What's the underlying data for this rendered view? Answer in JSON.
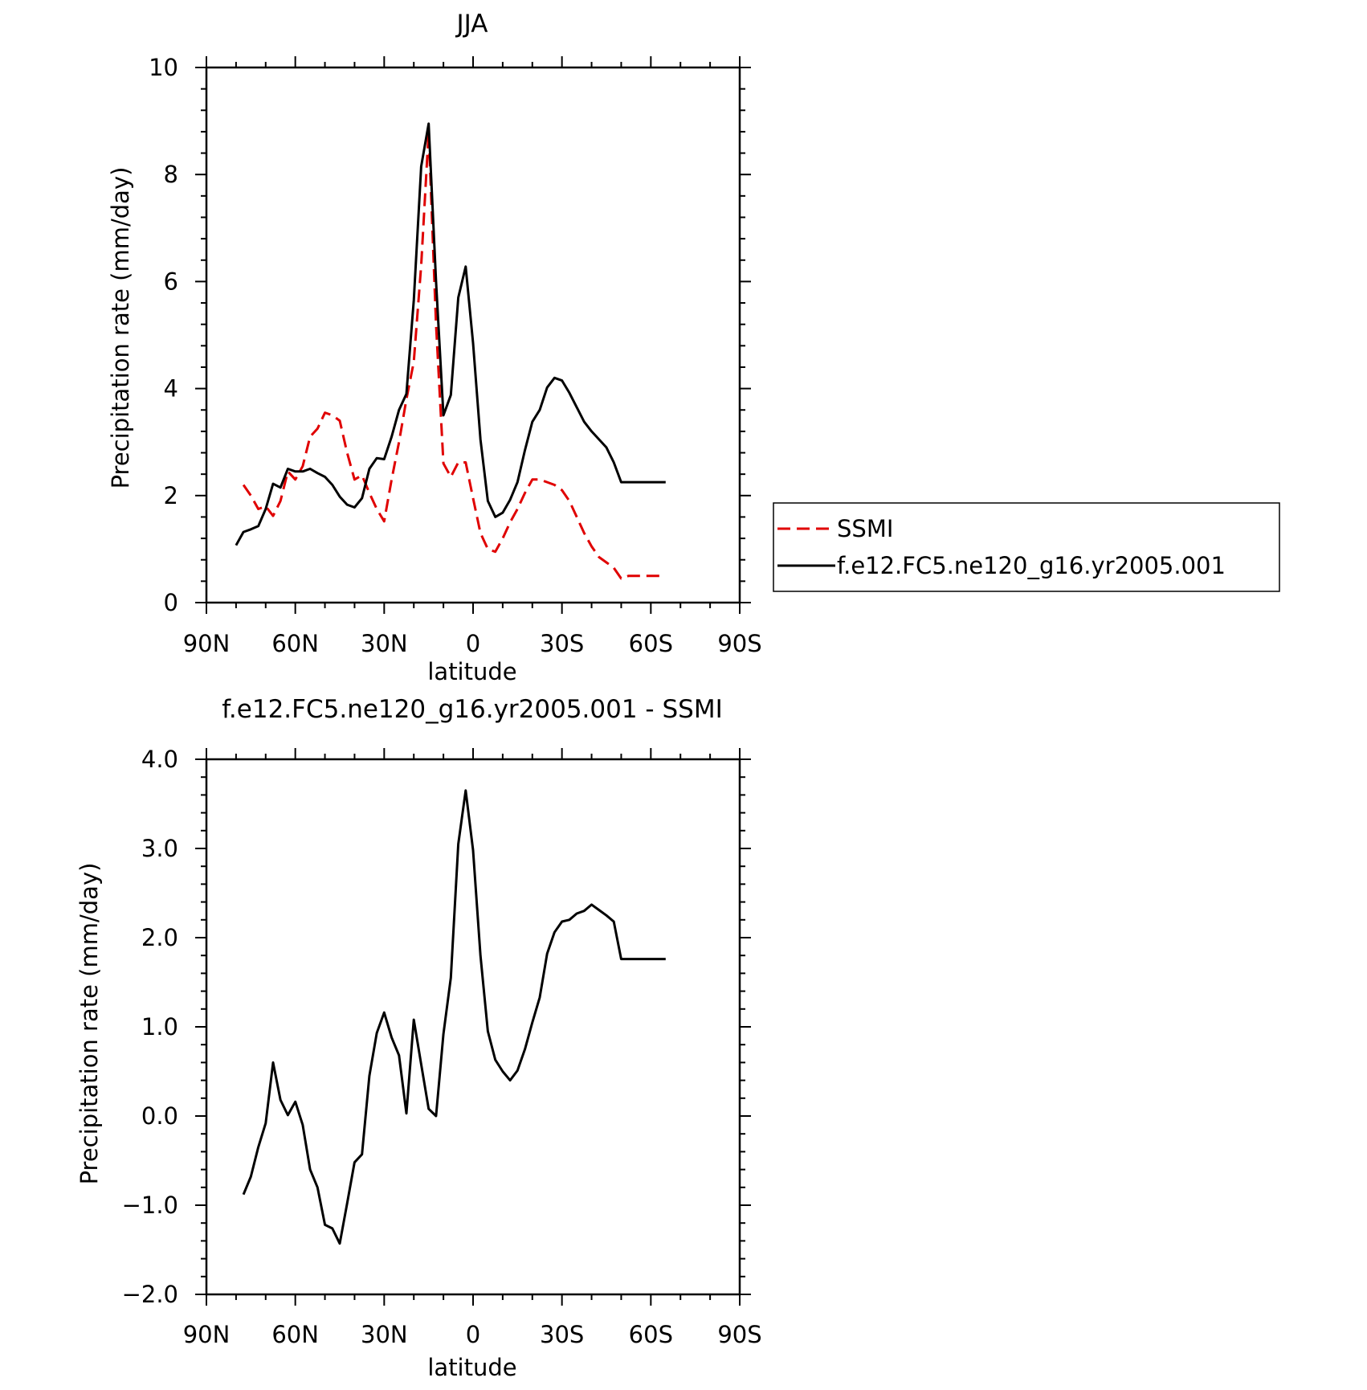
{
  "chart_data": [
    {
      "type": "line",
      "title": "JJA",
      "xlabel": "latitude",
      "ylabel": "Precipitation rate (mm/day)",
      "xlim": [
        90,
        -90
      ],
      "ylim": [
        0,
        10
      ],
      "x_ticks": [
        90,
        60,
        30,
        0,
        -30,
        -60,
        -90
      ],
      "x_tick_labels": [
        "90N",
        "60N",
        "30N",
        "0",
        "30S",
        "60S",
        "90S"
      ],
      "y_ticks": [
        0,
        2,
        4,
        6,
        8,
        10
      ],
      "y_tick_labels": [
        "0",
        "2",
        "4",
        "6",
        "8",
        "10"
      ],
      "legend_position": "right",
      "series": [
        {
          "name": "SSMI",
          "color": "#e00000",
          "dash": "dashed",
          "x": [
            77.5,
            75,
            72.5,
            70,
            67.5,
            65,
            62.5,
            60,
            57.5,
            55,
            52.5,
            50,
            47.5,
            45,
            42.5,
            40,
            37.5,
            35,
            32.5,
            30,
            27.5,
            25,
            22.5,
            20,
            17.5,
            15,
            12.5,
            10,
            7.5,
            5,
            2.5,
            0,
            -2.5,
            -5,
            -7.5,
            -10,
            -12.5,
            -15,
            -17.5,
            -20,
            -22.5,
            -25,
            -27.5,
            -30,
            -32.5,
            -35,
            -37.5,
            -40,
            -42.5,
            -45,
            -47.5,
            -50,
            -52.5,
            -55,
            -57.5,
            -60,
            -62.5,
            -65
          ],
          "y": [
            2.2,
            2.0,
            1.75,
            1.8,
            1.62,
            1.9,
            2.45,
            2.3,
            2.55,
            3.1,
            3.25,
            3.55,
            3.5,
            3.4,
            2.8,
            2.3,
            2.38,
            2.05,
            1.75,
            1.52,
            2.3,
            3.0,
            3.8,
            4.5,
            6.3,
            8.8,
            5.2,
            2.6,
            2.35,
            2.62,
            2.62,
            1.95,
            1.3,
            1.0,
            0.95,
            1.2,
            1.5,
            1.75,
            2.05,
            2.3,
            2.3,
            2.25,
            2.2,
            2.1,
            1.9,
            1.6,
            1.3,
            1.05,
            0.85,
            0.75,
            0.65,
            0.45,
            0.5,
            0.5,
            0.5,
            0.5,
            0.5,
            0.5
          ]
        },
        {
          "name": "f.e12.FC5.ne120_g16.yr2005.001",
          "color": "#000000",
          "dash": "solid",
          "x": [
            80,
            77.5,
            75,
            72.5,
            70,
            67.5,
            65,
            62.5,
            60,
            57.5,
            55,
            52.5,
            50,
            47.5,
            45,
            42.5,
            40,
            37.5,
            35,
            32.5,
            30,
            27.5,
            25,
            22.5,
            20,
            17.5,
            15,
            12.5,
            10,
            7.5,
            5,
            2.5,
            0,
            -2.5,
            -5,
            -7.5,
            -10,
            -12.5,
            -15,
            -17.5,
            -20,
            -22.5,
            -25,
            -27.5,
            -30,
            -32.5,
            -35,
            -37.5,
            -40,
            -42.5,
            -45,
            -47.5,
            -50,
            -52.5,
            -55,
            -57.5,
            -60,
            -62.5,
            -65
          ],
          "y": [
            1.07,
            1.32,
            1.37,
            1.43,
            1.75,
            2.22,
            2.15,
            2.5,
            2.45,
            2.45,
            2.5,
            2.42,
            2.35,
            2.2,
            1.98,
            1.83,
            1.78,
            1.95,
            2.5,
            2.7,
            2.68,
            3.1,
            3.6,
            3.9,
            5.65,
            8.15,
            8.95,
            6.0,
            3.5,
            3.88,
            5.7,
            6.28,
            4.85,
            3.05,
            1.9,
            1.6,
            1.68,
            1.92,
            2.25,
            2.85,
            3.38,
            3.6,
            4.02,
            4.2,
            4.15,
            3.92,
            3.65,
            3.38,
            3.2,
            3.05,
            2.9,
            2.62,
            2.25,
            2.25,
            2.25,
            2.25,
            2.25,
            2.25,
            2.25
          ]
        }
      ]
    },
    {
      "type": "line",
      "title": "f.e12.FC5.ne120_g16.yr2005.001 - SSMI",
      "xlabel": "latitude",
      "ylabel": "Precipitation rate (mm/day)",
      "xlim": [
        90,
        -90
      ],
      "ylim": [
        -2.0,
        4.0
      ],
      "x_ticks": [
        90,
        60,
        30,
        0,
        -30,
        -60,
        -90
      ],
      "x_tick_labels": [
        "90N",
        "60N",
        "30N",
        "0",
        "30S",
        "60S",
        "90S"
      ],
      "y_ticks": [
        -2.0,
        -1.0,
        0.0,
        1.0,
        2.0,
        3.0,
        4.0
      ],
      "y_tick_labels": [
        "−2.0",
        "−1.0",
        "0.0",
        "1.0",
        "2.0",
        "3.0",
        "4.0"
      ],
      "series": [
        {
          "color": "#000000",
          "dash": "solid",
          "x": [
            77.5,
            75,
            72.5,
            70,
            67.5,
            65,
            62.5,
            60,
            57.5,
            55,
            52.5,
            50,
            47.5,
            45,
            42.5,
            40,
            37.5,
            35,
            32.5,
            30,
            27.5,
            25,
            22.5,
            20,
            17.5,
            15,
            12.5,
            10,
            7.5,
            5,
            2.5,
            0,
            -2.5,
            -5,
            -7.5,
            -10,
            -12.5,
            -15,
            -17.5,
            -20,
            -22.5,
            -25,
            -27.5,
            -30,
            -32.5,
            -35,
            -37.5,
            -40,
            -42.5,
            -45,
            -47.5,
            -50,
            -52.5,
            -55,
            -57.5,
            -60,
            -62.5,
            -65
          ],
          "y": [
            -0.88,
            -0.68,
            -0.35,
            -0.08,
            0.6,
            0.18,
            0.01,
            0.16,
            -0.1,
            -0.6,
            -0.8,
            -1.22,
            -1.26,
            -1.43,
            -0.98,
            -0.52,
            -0.43,
            0.45,
            0.93,
            1.16,
            0.88,
            0.68,
            0.03,
            1.08,
            0.58,
            0.08,
            0.0,
            0.92,
            1.55,
            3.05,
            3.65,
            2.98,
            1.8,
            0.95,
            0.63,
            0.5,
            0.4,
            0.51,
            0.75,
            1.05,
            1.33,
            1.82,
            2.06,
            2.18,
            2.2,
            2.27,
            2.3,
            2.37,
            2.31,
            2.25,
            2.18,
            1.76,
            1.76,
            1.76,
            1.76,
            1.76,
            1.76,
            1.76
          ]
        }
      ]
    }
  ]
}
